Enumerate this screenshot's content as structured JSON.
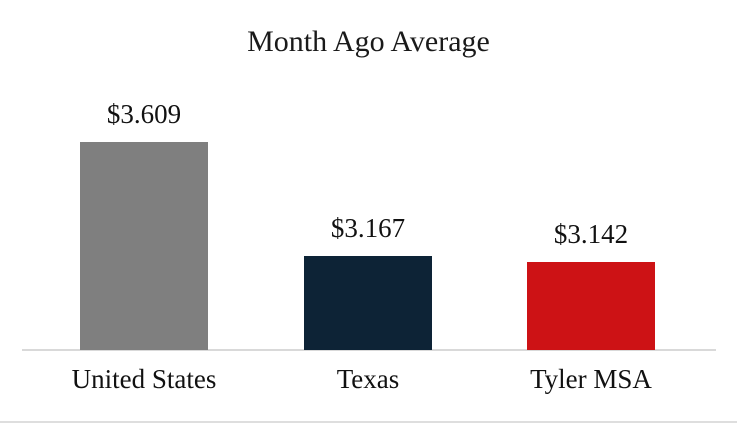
{
  "page": {
    "background_color": "#ffffff",
    "frame_border_color": "#dedede"
  },
  "chart_data": {
    "type": "bar",
    "title": "Month Ago Average",
    "categories": [
      "United States",
      "Texas",
      "Tyler MSA"
    ],
    "values": [
      3.609,
      3.167,
      3.142
    ],
    "data_labels": [
      "$3.609",
      "$3.167",
      "$3.142"
    ],
    "bar_colors": [
      "#7f7f7f",
      "#0d2336",
      "#cd1215"
    ],
    "text_color": "#111111",
    "axis_line_color": "#d9d9d9",
    "ylim": [
      2.8,
      3.7
    ],
    "xlabel": "",
    "ylabel": "",
    "grid": false,
    "legend_position": "none"
  }
}
